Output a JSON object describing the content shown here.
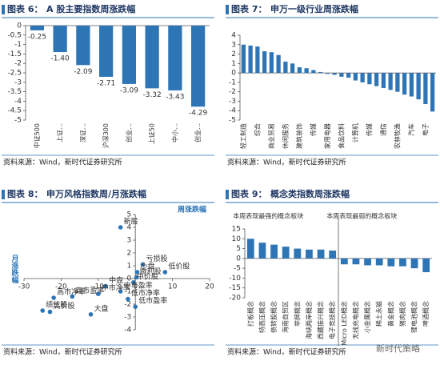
{
  "watermark": "新时代策略",
  "chart_data": [
    {
      "type": "bar",
      "label": "图表 6：",
      "title": "A 股主要指数周涨跌幅",
      "source": "资料来源：Wind，新时代证券研究所",
      "categories": [
        "中证500",
        "上证…",
        "深证…",
        "沪深300",
        "创业…",
        "上证50",
        "中小…",
        "创业…"
      ],
      "values": [
        -0.25,
        -1.4,
        -2.09,
        -2.71,
        -3.09,
        -3.32,
        -3.43,
        -4.29
      ],
      "value_labels": [
        "-0.25",
        "-1.40",
        "-2.09",
        "-2.71",
        "-3.09",
        "-3.32",
        "-3.43",
        "-4.29"
      ],
      "color": "#2e75b6",
      "ylim": [
        -5,
        0
      ],
      "yticks": [
        0,
        -0.5,
        -1,
        -1.5,
        -2,
        -2.5,
        -3,
        -3.5,
        -4,
        -4.5,
        -5
      ]
    },
    {
      "type": "bar",
      "label": "图表 7：",
      "title": "申万一级行业周涨跌幅",
      "source": "资料来源：Wind，新时代证券研究所",
      "categories": [
        "轻工制造",
        null,
        "综合",
        null,
        "商业贸易",
        null,
        "休闲服务",
        null,
        "建筑装饰",
        null,
        "传媒",
        null,
        "家用电器",
        null,
        "食品饮料",
        null,
        "计算机",
        null,
        "传媒",
        null,
        "通信",
        null,
        "农林牧渔",
        null,
        "汽车",
        null,
        "电子",
        null
      ],
      "values": [
        3.0,
        2.9,
        2.8,
        2.3,
        2.2,
        1.9,
        1.2,
        1.0,
        0.6,
        0.5,
        0.3,
        0.1,
        -0.1,
        -0.2,
        -0.4,
        -0.5,
        -0.8,
        -1.0,
        -1.2,
        -1.4,
        -1.6,
        -1.8,
        -2.0,
        -2.3,
        -2.5,
        -2.8,
        -3.3,
        -4.1
      ],
      "color": "#2e75b6",
      "ylim": [
        -5,
        4
      ],
      "yticks": [
        4,
        3,
        2,
        1,
        0,
        -1,
        -2,
        -3,
        -4,
        -5
      ]
    },
    {
      "type": "scatter",
      "label": "图表 8：",
      "title": "申万风格指数周/月涨跌幅",
      "source": "资料来源：Wind，新时代证券研究所",
      "xlabel": "周涨跌幅",
      "ylabel": "月涨跌幅",
      "labels": [
        "新股",
        "亏损股",
        "小盘",
        "微利股",
        "低价股",
        "中价股",
        "中盘",
        "中市盈率",
        "中市净率",
        "高市净率",
        "高市盈率",
        "绩优股",
        "高价股",
        "大盘",
        "低市盈率",
        "低市净率"
      ],
      "x": [
        -4,
        2,
        0.5,
        0.3,
        8,
        -0.5,
        -8,
        -4,
        -10,
        -22,
        -17,
        -25,
        -23,
        -12,
        0,
        -2
      ],
      "values": [
        4,
        1.1,
        0.5,
        0.1,
        0.5,
        -0.3,
        -0.6,
        -1,
        -1.2,
        -1.5,
        -1.4,
        -2.5,
        -2.6,
        -2.8,
        -2.2,
        -1.6
      ],
      "color": "#2e75b6",
      "xlim": [
        -30,
        20
      ],
      "xticks": [
        -30,
        -20,
        -10,
        0,
        10,
        20
      ],
      "ylim": [
        -4,
        5
      ],
      "yticks": [
        5,
        4,
        3,
        2,
        1,
        0,
        -1,
        -2,
        -3,
        -4
      ]
    },
    {
      "type": "bar",
      "label": "图表 9：",
      "title": "概念类指数周涨跌幅",
      "source": "资料来源：Wind，新时代证券研究所",
      "subtitles": [
        "本周表现最强的概念板块",
        "本周表现最弱的概念板块"
      ],
      "categories": [
        "打板概念",
        "特高压概念",
        "债转股概念",
        "海南自贸区",
        "举牌概念",
        "海峡两岸概念",
        "西藏振兴概念",
        "电子竞技概念",
        "Micro LED概念",
        "无线充电概念",
        "小金属概念",
        "稀土永磁",
        "黄金概念",
        "猪肉概念",
        "锂电池概念",
        "啤酒概念"
      ],
      "values": [
        10,
        8,
        7,
        6,
        5,
        4.5,
        4.5,
        4,
        -3,
        -3,
        -3.5,
        -3.5,
        -4,
        -4,
        -5,
        -7
      ],
      "color": "#2e75b6",
      "ylim": [
        -20,
        15
      ],
      "yticks": [
        15,
        10,
        5,
        0,
        -5,
        -10,
        -15,
        -20
      ]
    }
  ]
}
